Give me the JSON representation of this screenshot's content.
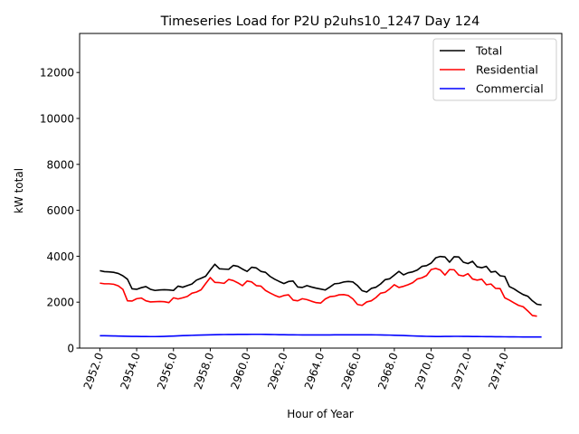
{
  "chart_data": {
    "type": "line",
    "title": "Timeseries Load for P2U p2uhs10_1247  Day 124",
    "xlabel": "Hour of Year",
    "ylabel": "kW total",
    "xlim": [
      2950.9,
      2977.1
    ],
    "ylim": [
      0,
      13700
    ],
    "x_ticks": [
      2952,
      2954,
      2956,
      2958,
      2960,
      2962,
      2964,
      2966,
      2968,
      2970,
      2972,
      2974
    ],
    "x_tick_labels": [
      "2952.0",
      "2954.0",
      "2956.0",
      "2958.0",
      "2960.0",
      "2962.0",
      "2964.0",
      "2966.0",
      "2968.0",
      "2970.0",
      "2972.0",
      "2974.0"
    ],
    "y_ticks": [
      0,
      2000,
      4000,
      6000,
      8000,
      10000,
      12000
    ],
    "y_tick_labels": [
      "0",
      "2000",
      "4000",
      "6000",
      "8000",
      "10000",
      "12000"
    ],
    "legend_position": "top-right",
    "x_start": 2952,
    "x_step": 0.25,
    "series": [
      {
        "name": "Total",
        "color": "#000000",
        "values": [
          3370,
          3330,
          3320,
          3300,
          3250,
          3150,
          3000,
          2580,
          2560,
          2630,
          2680,
          2560,
          2510,
          2530,
          2540,
          2530,
          2510,
          2700,
          2650,
          2720,
          2790,
          2960,
          3040,
          3130,
          3400,
          3650,
          3450,
          3440,
          3430,
          3600,
          3560,
          3440,
          3340,
          3520,
          3490,
          3340,
          3300,
          3120,
          3000,
          2900,
          2810,
          2900,
          2920,
          2660,
          2640,
          2720,
          2660,
          2610,
          2570,
          2530,
          2660,
          2800,
          2820,
          2880,
          2900,
          2880,
          2720,
          2500,
          2440,
          2600,
          2650,
          2790,
          2980,
          3020,
          3180,
          3340,
          3190,
          3280,
          3320,
          3400,
          3560,
          3590,
          3700,
          3930,
          3990,
          3970,
          3740,
          3980,
          3970,
          3740,
          3680,
          3780,
          3540,
          3500,
          3560,
          3310,
          3340,
          3150,
          3120,
          2680,
          2580,
          2450,
          2330,
          2260,
          2060,
          1910,
          1880
        ],
        "end_index": 96
      },
      {
        "name": "Residential",
        "color": "#ff0000",
        "values": [
          2830,
          2800,
          2800,
          2780,
          2710,
          2560,
          2060,
          2050,
          2150,
          2180,
          2060,
          2010,
          2020,
          2030,
          2020,
          1980,
          2190,
          2140,
          2190,
          2250,
          2390,
          2440,
          2540,
          2810,
          3070,
          2860,
          2850,
          2820,
          2990,
          2940,
          2840,
          2720,
          2920,
          2880,
          2720,
          2700,
          2510,
          2400,
          2300,
          2220,
          2290,
          2320,
          2090,
          2060,
          2150,
          2110,
          2040,
          1980,
          1960,
          2140,
          2240,
          2260,
          2320,
          2330,
          2290,
          2140,
          1900,
          1860,
          2010,
          2060,
          2200,
          2390,
          2430,
          2580,
          2760,
          2640,
          2690,
          2760,
          2850,
          3010,
          3060,
          3160,
          3420,
          3470,
          3400,
          3180,
          3420,
          3410,
          3180,
          3140,
          3240,
          3010,
          2960,
          3000,
          2760,
          2790,
          2600,
          2590,
          2190,
          2090,
          1970,
          1860,
          1800,
          1620,
          1420,
          1390
        ],
        "end_index": 95
      },
      {
        "name": "Commercial",
        "color": "#0000ff",
        "values": [
          540,
          540,
          535,
          530,
          525,
          520,
          515,
          510,
          508,
          505,
          503,
          502,
          502,
          505,
          510,
          518,
          525,
          535,
          542,
          550,
          556,
          562,
          568,
          574,
          580,
          585,
          588,
          590,
          592,
          594,
          596,
          597,
          598,
          600,
          600,
          600,
          598,
          595,
          590,
          585,
          582,
          580,
          578,
          576,
          575,
          574,
          573,
          572,
          572,
          573,
          575,
          577,
          579,
          580,
          580,
          580,
          580,
          580,
          580,
          578,
          576,
          573,
          570,
          566,
          560,
          555,
          548,
          540,
          532,
          525,
          518,
          512,
          508,
          506,
          506,
          508,
          510,
          512,
          512,
          510,
          508,
          506,
          504,
          502,
          500,
          498,
          496,
          494,
          492,
          490,
          488,
          487,
          486,
          486,
          486,
          486,
          486
        ],
        "end_index": 96
      }
    ]
  }
}
